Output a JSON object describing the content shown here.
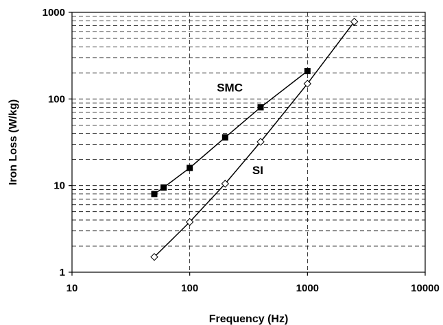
{
  "chart_data": {
    "type": "line",
    "title": "",
    "xlabel": "Frequency (Hz)",
    "ylabel": "Iron Loss (W/kg)",
    "x_scale": "log",
    "y_scale": "log",
    "xlim": [
      10,
      10000
    ],
    "ylim": [
      1,
      1000
    ],
    "x_ticks": [
      10,
      100,
      1000,
      10000
    ],
    "x_tick_labels": [
      "10",
      "100",
      "1000",
      "10000"
    ],
    "y_ticks": [
      1,
      10,
      100,
      1000
    ],
    "y_tick_labels": [
      "1",
      "10",
      "100",
      "1000"
    ],
    "grid": true,
    "legend": "none",
    "series": [
      {
        "name": "SMC",
        "marker": "filled-square",
        "color": "#000000",
        "x": [
          50,
          60,
          100,
          200,
          400,
          1000
        ],
        "y": [
          8,
          9.5,
          16,
          36,
          80,
          210
        ]
      },
      {
        "name": "SI",
        "marker": "open-diamond",
        "color": "#000000",
        "x": [
          50,
          100,
          200,
          400,
          1000,
          2500
        ],
        "y": [
          1.5,
          3.8,
          10.5,
          32,
          150,
          780
        ]
      }
    ]
  }
}
